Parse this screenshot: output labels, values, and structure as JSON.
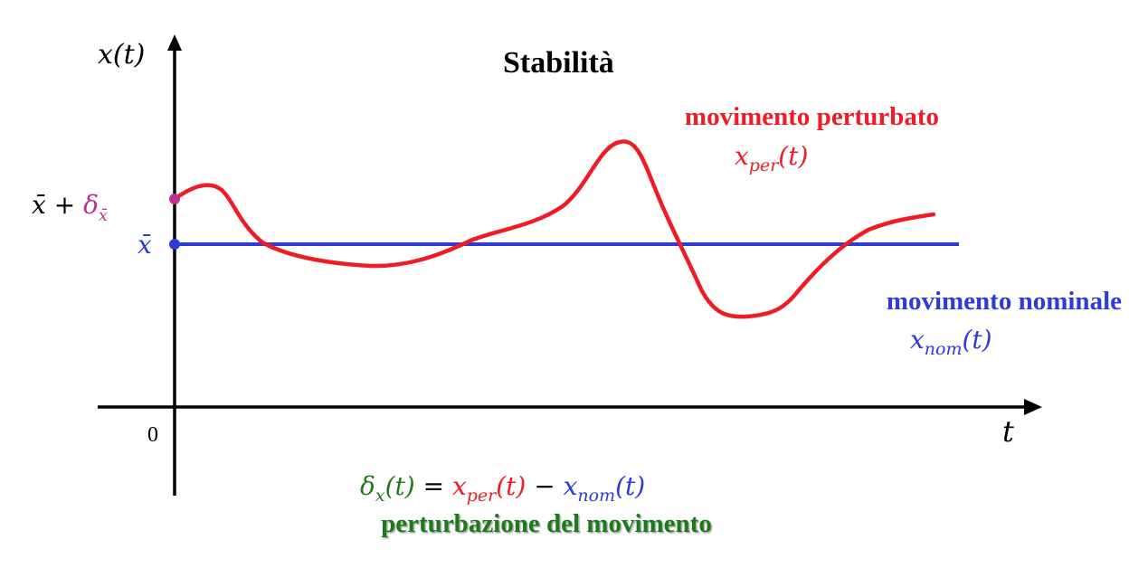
{
  "title": "Stabilità",
  "axes": {
    "y_label": "x(t)",
    "x_label": "t",
    "origin_label": "0"
  },
  "levels": {
    "perturbed_start": {
      "base": "x̄ + ",
      "delta": "δ",
      "delta_sub": "x̄"
    },
    "nominal": "x̄"
  },
  "perturbed": {
    "title": "movimento perturbato",
    "symbol": "x",
    "symbol_sub": "per",
    "symbol_arg": "(t)"
  },
  "nominal": {
    "title": "movimento nominale",
    "symbol": "x",
    "symbol_sub": "nom",
    "symbol_arg": "(t)"
  },
  "equation": {
    "lhs": "δ",
    "lhs_sub": "x",
    "lhs_arg": "(t)",
    "eq": " = ",
    "t1": "x",
    "t1_sub": "per",
    "t1_arg": "(t)",
    "minus": " − ",
    "t2": "x",
    "t2_sub": "nom",
    "t2_arg": "(t)"
  },
  "caption": "perturbazione del movimento",
  "colors": {
    "perturbed": "#ee1c25",
    "nominal": "#2e3bd6",
    "delta": "#c0308f",
    "caption": "#1f7a1f",
    "axis": "#000000"
  }
}
